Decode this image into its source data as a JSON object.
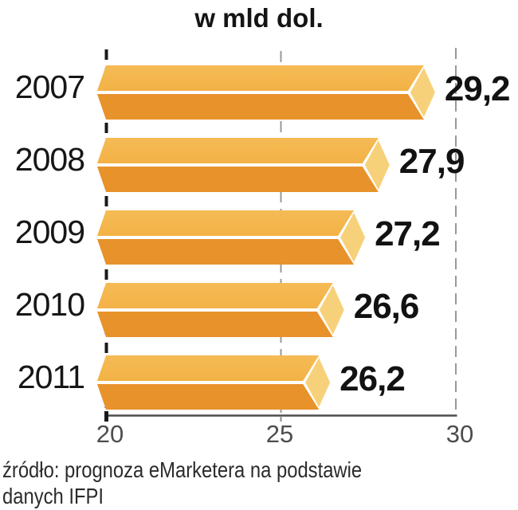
{
  "title": "w mld dol.",
  "source": {
    "line1": "źródło: prognoza eMarketera na podstawie",
    "line2": "danych IFPI"
  },
  "chart_data": {
    "type": "bar",
    "orientation": "horizontal",
    "title": "w mld dol.",
    "categories": [
      "2007",
      "2008",
      "2009",
      "2010",
      "2011"
    ],
    "values": [
      29.2,
      27.9,
      27.2,
      26.6,
      26.2
    ],
    "value_labels": [
      "29,2",
      "27,9",
      "27,2",
      "26,6",
      "26,2"
    ],
    "xlim": [
      20,
      30
    ],
    "xticks": [
      20,
      25,
      30
    ],
    "xtick_labels": [
      "20",
      "25",
      "30"
    ],
    "grid": true,
    "legend": false,
    "colors": {
      "bar_top_face": "#F3B246",
      "bar_top_face_light": "#F5BB55",
      "bar_bottom_face": "#E8922B",
      "bar_end_cap": "#F7D17A",
      "bar_separator": "#FFFFFF",
      "grid_line": "#999999",
      "zero_line": "#1A1A1A",
      "axis_line": "#4D4D4D",
      "text": "#141414"
    }
  }
}
